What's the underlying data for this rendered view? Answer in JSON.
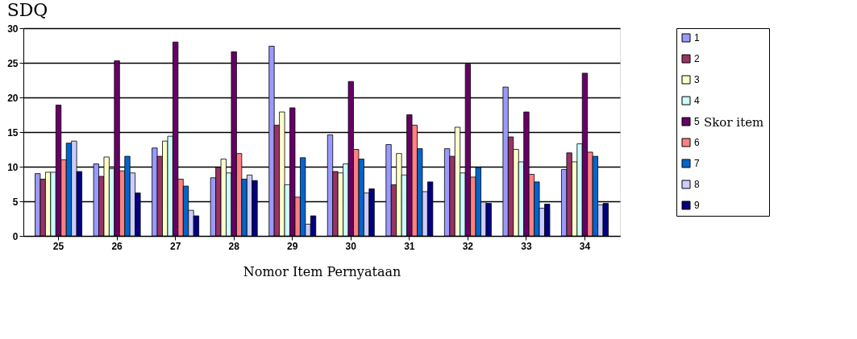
{
  "chart_data": {
    "type": "bar",
    "title": "SDQ",
    "xlabel": "Nomor Item Pernyataan",
    "legend_title": "Skor item",
    "categories": [
      "25",
      "26",
      "27",
      "28",
      "29",
      "30",
      "31",
      "32",
      "33",
      "34"
    ],
    "series": [
      {
        "name": "1",
        "color": "#9999ff",
        "values": [
          9,
          10.4,
          12.7,
          8.4,
          27.4,
          14.6,
          13.2,
          12.6,
          21.5,
          9.6
        ]
      },
      {
        "name": "2",
        "color": "#993366",
        "values": [
          8.2,
          8.6,
          11.5,
          9.9,
          16,
          9.3,
          7.4,
          11.5,
          14.3,
          12
        ]
      },
      {
        "name": "3",
        "color": "#ffffcc",
        "values": [
          9.2,
          11.4,
          13.7,
          11.1,
          17.9,
          9.1,
          11.9,
          15.7,
          12.5,
          10.7
        ]
      },
      {
        "name": "4",
        "color": "#ccffff",
        "values": [
          9.2,
          9.7,
          14.4,
          9.1,
          7.4,
          10.4,
          8.8,
          9.1,
          10.7,
          13.3
        ]
      },
      {
        "name": "5",
        "color": "#660066",
        "values": [
          18.9,
          25.3,
          28,
          26.6,
          18.5,
          22.3,
          17.5,
          24.8,
          17.9,
          23.5
        ]
      },
      {
        "name": "6",
        "color": "#ff8080",
        "values": [
          11,
          9.4,
          8.2,
          11.9,
          5.6,
          12.5,
          16,
          8.5,
          8.9,
          12.1
        ]
      },
      {
        "name": "7",
        "color": "#0066cc",
        "values": [
          13.4,
          11.5,
          7.2,
          8.2,
          11.3,
          11.1,
          12.6,
          9.9,
          7.8,
          11.5
        ]
      },
      {
        "name": "8",
        "color": "#ccccff",
        "values": [
          13.7,
          9.1,
          3.7,
          8.8,
          1.7,
          6.2,
          6.4,
          4.9,
          4,
          4.5
        ]
      },
      {
        "name": "9",
        "color": "#000080",
        "values": [
          9.3,
          6.2,
          2.9,
          8,
          2.9,
          6.8,
          7.8,
          4.7,
          4.6,
          4.7
        ]
      }
    ],
    "ylim": [
      0,
      30
    ],
    "yticks": [
      0,
      5,
      10,
      15,
      20,
      25,
      30
    ],
    "grid": "y",
    "legend": "right"
  }
}
